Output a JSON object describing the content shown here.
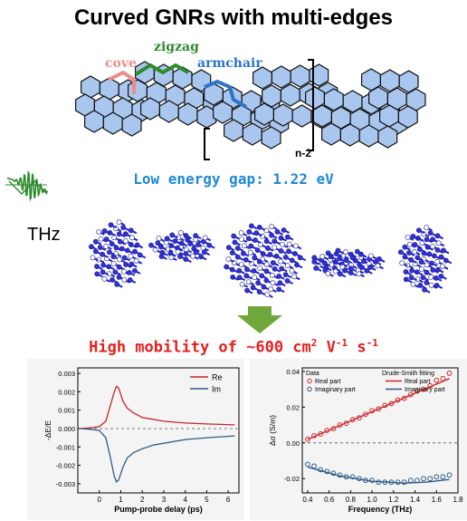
{
  "title": "Curved GNRs with multi-edges",
  "edge_labels": {
    "cove": "cove",
    "zigzag": "zigzag",
    "armchair": "armchair",
    "repeat": "n-2"
  },
  "thz_label": "THz",
  "energy_gap": "Low energy gap: 1.22 eV",
  "mobility": {
    "text": "High mobility of ~600 cm",
    "sup1": "2",
    "mid": " V",
    "sup2": "-1",
    "mid2": " s",
    "sup3": "-1"
  },
  "colors": {
    "cove": "#f08a8a",
    "zigzag": "#2d8a2d",
    "armchair": "#2b74c9",
    "ring_fill": "#a9c6ee",
    "gap_text": "#1e88d6",
    "mobility_text": "#e5201e",
    "arrow": "#6fa83a"
  },
  "chart_data": [
    {
      "type": "line",
      "xlabel": "Pump-probe delay (ps)",
      "ylabel": "-ΔE/E",
      "xlim": [
        -1,
        6.5
      ],
      "ylim": [
        -0.0035,
        0.0033
      ],
      "xticks": [
        "0",
        "1",
        "2",
        "3",
        "4",
        "5",
        "6"
      ],
      "yticks": [
        "0.003",
        "0.002",
        "0.001",
        "0.000",
        "-0.001",
        "-0.002",
        "-0.003"
      ],
      "series": [
        {
          "name": "Re",
          "color": "#c8242a",
          "x": [
            -0.9,
            -0.5,
            0,
            0.3,
            0.5,
            0.7,
            0.8,
            0.9,
            1.1,
            1.3,
            1.6,
            2,
            2.5,
            3,
            4,
            5,
            6.3
          ],
          "y": [
            0,
            3e-05,
            0.0001,
            0.0004,
            0.0012,
            0.002,
            0.0023,
            0.0022,
            0.0015,
            0.0011,
            0.00085,
            0.0006,
            0.0005,
            0.0004,
            0.0003,
            0.00025,
            0.0002
          ]
        },
        {
          "name": "Im",
          "color": "#2c5a86",
          "x": [
            -0.9,
            -0.5,
            0,
            0.3,
            0.5,
            0.7,
            0.8,
            0.9,
            1.1,
            1.3,
            1.6,
            2,
            2.5,
            3,
            4,
            5,
            6.3
          ],
          "y": [
            0,
            -3e-05,
            -0.0001,
            -0.0005,
            -0.0015,
            -0.0026,
            -0.0029,
            -0.0028,
            -0.0021,
            -0.0016,
            -0.0013,
            -0.0011,
            -0.0009,
            -0.0008,
            -0.0006,
            -0.0005,
            -0.0004
          ]
        }
      ]
    },
    {
      "type": "scatter",
      "xlabel": "Frequency (THz)",
      "ylabel": "Δσ (S/m)",
      "xlim": [
        0.35,
        1.8
      ],
      "ylim": [
        -0.028,
        0.042
      ],
      "xticks": [
        "0.4",
        "0.6",
        "0.8",
        "1.0",
        "1.2",
        "1.4",
        "1.6",
        "1.8"
      ],
      "yticks": [
        "0.04",
        "0.02",
        "0.00",
        "-0.02"
      ],
      "legend": {
        "data_title": "Data",
        "fit_title": "Drude-Smith fitting",
        "real": "Real part",
        "imag": "Imaginary part"
      },
      "series": [
        {
          "name": "Real part",
          "color": "#d0282c",
          "x": [
            0.4,
            0.46,
            0.52,
            0.58,
            0.64,
            0.7,
            0.76,
            0.82,
            0.88,
            0.94,
            1.0,
            1.06,
            1.12,
            1.18,
            1.24,
            1.3,
            1.36,
            1.42,
            1.48,
            1.54,
            1.6,
            1.66,
            1.72
          ],
          "y": [
            0.002,
            0.004,
            0.005,
            0.007,
            0.008,
            0.01,
            0.011,
            0.013,
            0.014,
            0.016,
            0.018,
            0.019,
            0.021,
            0.022,
            0.024,
            0.025,
            0.027,
            0.029,
            0.03,
            0.032,
            0.035,
            0.036,
            0.039
          ],
          "fit": [
            [
              0.4,
              0.002
            ],
            [
              1.72,
              0.036
            ]
          ]
        },
        {
          "name": "Imaginary part",
          "color": "#2c5a86",
          "x": [
            0.4,
            0.46,
            0.52,
            0.58,
            0.64,
            0.7,
            0.76,
            0.82,
            0.88,
            0.94,
            1.0,
            1.06,
            1.12,
            1.18,
            1.24,
            1.3,
            1.36,
            1.42,
            1.48,
            1.54,
            1.6,
            1.66,
            1.72
          ],
          "y": [
            -0.012,
            -0.013,
            -0.015,
            -0.016,
            -0.017,
            -0.018,
            -0.019,
            -0.019,
            -0.02,
            -0.021,
            -0.021,
            -0.022,
            -0.022,
            -0.022,
            -0.022,
            -0.022,
            -0.021,
            -0.021,
            -0.02,
            -0.02,
            -0.019,
            -0.019,
            -0.018
          ],
          "fit": [
            [
              0.4,
              -0.0135
            ],
            [
              0.7,
              -0.0185
            ],
            [
              1.0,
              -0.0215
            ],
            [
              1.3,
              -0.0225
            ],
            [
              1.5,
              -0.022
            ],
            [
              1.72,
              -0.0205
            ]
          ]
        }
      ]
    }
  ]
}
